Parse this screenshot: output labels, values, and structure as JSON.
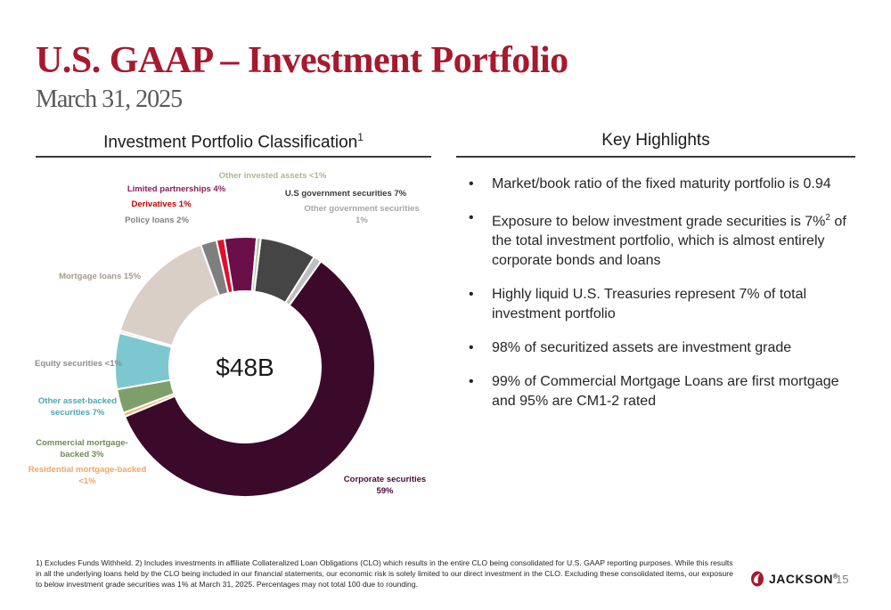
{
  "header": {
    "title": "U.S. GAAP – Investment Portfolio",
    "subtitle": "March 31, 2025"
  },
  "left_section": {
    "heading": "Investment Portfolio Classification",
    "heading_sup": "1"
  },
  "right_section": {
    "heading": "Key Highlights",
    "bullet_char": "•",
    "bullets": [
      {
        "text": "Market/book ratio of the fixed maturity portfolio is 0.94"
      },
      {
        "text_before": "Exposure to below investment grade securities is 7%",
        "sup": "2",
        "text_after": " of the total investment portfolio, which is almost entirely corporate bonds and loans"
      },
      {
        "text": "Highly liquid U.S. Treasuries represent 7% of total investment portfolio"
      },
      {
        "text": "98% of securitized assets are investment grade"
      },
      {
        "text": "99% of Commercial Mortgage Loans are first mortgage and 95% are CM1-2 rated"
      }
    ]
  },
  "chart_data": {
    "type": "pie",
    "style": "donut",
    "center_label": "$48B",
    "slices": [
      {
        "label_lines": [
          "U.S government securities 7%"
        ],
        "value": 7,
        "color": "#454545",
        "label_color": "#3a3a3a"
      },
      {
        "label_lines": [
          "Other government securities",
          "1%"
        ],
        "value": 1,
        "color": "#bfbfbf",
        "label_color": "#a6a6a6"
      },
      {
        "label_lines": [
          "Corporate securities",
          "59%"
        ],
        "value": 59,
        "color": "#3b0a2a",
        "label_color": "#4a0d35"
      },
      {
        "label_lines": [
          "Residential mortgage-backed",
          "<1%"
        ],
        "value": 0.5,
        "color": "#f6b26b",
        "label_color": "#f4a460"
      },
      {
        "label_lines": [
          "Commercial mortgage-",
          "backed 3%"
        ],
        "value": 3,
        "color": "#7f9f6a",
        "label_color": "#6d8b57"
      },
      {
        "label_lines": [
          "Other asset-backed",
          "securities 7%"
        ],
        "value": 7,
        "color": "#7dc8d0",
        "label_color": "#4aa6b3"
      },
      {
        "label_lines": [
          "Equity securities <1%"
        ],
        "value": 0.3,
        "color": "#d9d2c5",
        "label_color": "#8c8c8c"
      },
      {
        "label_lines": [
          "Mortgage loans 15%"
        ],
        "value": 15,
        "color": "#d9cfc6",
        "label_color": "#a89b8c"
      },
      {
        "label_lines": [
          "Policy loans 2%"
        ],
        "value": 2,
        "color": "#7f7f7f",
        "label_color": "#7f7f7f"
      },
      {
        "label_lines": [
          "Derivatives 1%"
        ],
        "value": 1,
        "color": "#e0102d",
        "label_color": "#c00000"
      },
      {
        "label_lines": [
          "Limited partnerships 4%"
        ],
        "value": 4,
        "color": "#6b0f4a",
        "label_color": "#8b1d5c"
      },
      {
        "label_lines": [
          "Other invested assets <1%"
        ],
        "value": 0.5,
        "color": "#bcc9a3",
        "label_color": "#a9b98f"
      }
    ]
  },
  "footnote": "1) Excludes Funds Withheld. 2) Includes investments in affiliate Collateralized Loan Obligations (CLO) which results in the entire CLO being consolidated for U.S. GAAP reporting purposes.  While this results in all the underlying loans held by the CLO being included in our financial statements, our economic risk is solely limited to our direct investment in the CLO.  Excluding these consolidated items, our exposure to below investment grade securities was 1% at March 31, 2025.  Percentages may not total 100 due to rounding.",
  "logo": {
    "text": "JACKSON",
    "mark": "®"
  },
  "page_number": "15"
}
